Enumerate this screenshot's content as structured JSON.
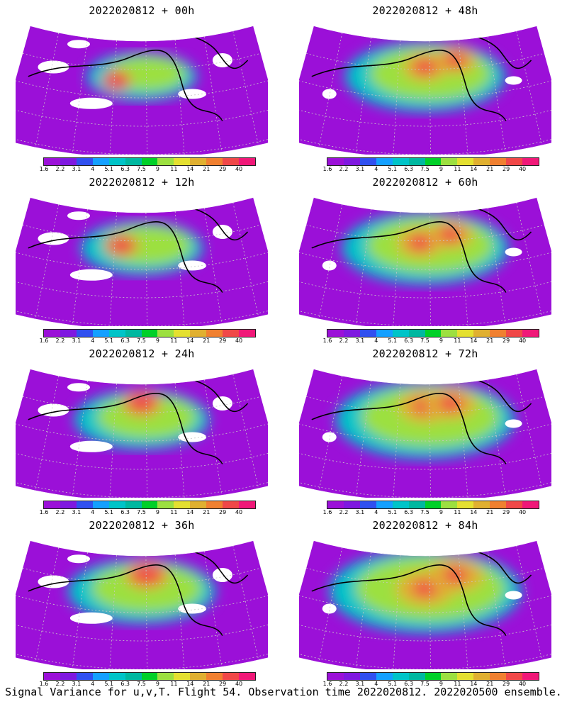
{
  "panels": [
    {
      "title": "2022020812 + 00h",
      "intensity": 0.15,
      "hot": [
        [
          0.4,
          0.45,
          1.0
        ]
      ]
    },
    {
      "title": "2022020812 + 48h",
      "intensity": 0.55,
      "hot": [
        [
          0.5,
          0.35,
          0.8
        ],
        [
          0.62,
          0.3,
          0.7
        ]
      ]
    },
    {
      "title": "2022020812 + 12h",
      "intensity": 0.25,
      "hot": [
        [
          0.42,
          0.4,
          0.9
        ]
      ]
    },
    {
      "title": "2022020812 + 60h",
      "intensity": 0.6,
      "hot": [
        [
          0.48,
          0.38,
          0.8
        ],
        [
          0.6,
          0.32,
          0.75
        ]
      ]
    },
    {
      "title": "2022020812 + 24h",
      "intensity": 0.35,
      "hot": [
        [
          0.5,
          0.3,
          0.9
        ]
      ]
    },
    {
      "title": "2022020812 + 72h",
      "intensity": 0.7,
      "hot": [
        [
          0.5,
          0.32,
          0.85
        ],
        [
          0.6,
          0.3,
          0.8
        ]
      ]
    },
    {
      "title": "2022020812 + 36h",
      "intensity": 0.45,
      "hot": [
        [
          0.52,
          0.3,
          0.85
        ]
      ]
    },
    {
      "title": "2022020812 + 84h",
      "intensity": 0.8,
      "hot": [
        [
          0.5,
          0.4,
          0.85
        ],
        [
          0.62,
          0.3,
          0.8
        ]
      ]
    }
  ],
  "colorbar": {
    "colors": [
      "#9b10d8",
      "#7f18e0",
      "#3050f0",
      "#14a0ff",
      "#00c4c8",
      "#00b8a0",
      "#00d028",
      "#9ce040",
      "#e4e030",
      "#e0b030",
      "#f08030",
      "#f04848",
      "#f01878"
    ],
    "ticks": [
      "1.6",
      "2.2",
      "3.1",
      "4",
      "5.1",
      "6.3",
      "7.5",
      "9",
      "11",
      "14",
      "21",
      "29",
      "40"
    ]
  },
  "caption": "Signal Variance for u,v,T. Flight 54. Observation time 2022020812. 2022020500 ensemble."
}
